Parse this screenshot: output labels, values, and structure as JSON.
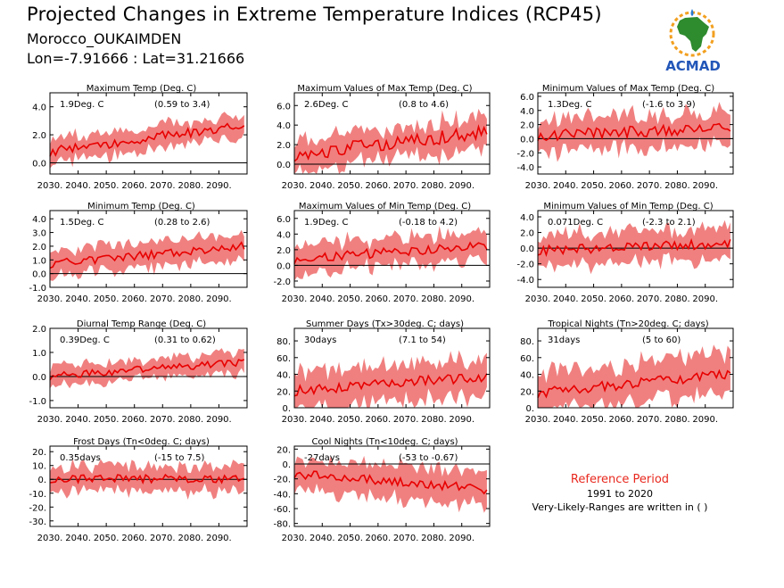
{
  "header": {
    "title": "Projected Changes in Extreme Temperature Indices (RCP45)",
    "location": "Morocco_OUKAIMDEN",
    "coords": "Lon=-7.91666 : Lat=31.21666"
  },
  "logo": {
    "text": "ACMAD",
    "icon": "africa-map-logo"
  },
  "reference": {
    "title": "Reference Period",
    "years": "1991 to 2020",
    "note": "Very-Likely-Ranges are written in ( )"
  },
  "colors": {
    "band": "#f08080",
    "line": "#e80000",
    "zero": "#000000",
    "ref_title": "#e8281e"
  },
  "chart_data": [
    {
      "id": "txx-mean",
      "type": "line",
      "title": "Maximum Temp (Deg. C)",
      "change": "1.9Deg. C",
      "range": "(0.59 to 3.4)",
      "x": [
        2030,
        2099
      ],
      "start": 0.8,
      "end": 2.7,
      "spread": 0.8,
      "noise": 0.35,
      "ylim": [
        -0.8,
        5.0
      ],
      "yticks": [
        "4.0",
        "2.0",
        "0.0"
      ],
      "ytick_values": [
        4,
        2,
        0
      ]
    },
    {
      "id": "txx",
      "type": "line",
      "title": "Maximum Values of Max Temp (Deg. C)",
      "change": "2.6Deg. C",
      "range": "(0.8 to 4.6)",
      "x": [
        2030,
        2099
      ],
      "start": 1.0,
      "end": 3.3,
      "spread": 1.6,
      "noise": 0.7,
      "ylim": [
        -1.0,
        7.3
      ],
      "yticks": [
        "6.0",
        "4.0",
        "2.0",
        "0.0"
      ],
      "ytick_values": [
        6,
        4,
        2,
        0
      ]
    },
    {
      "id": "txn",
      "type": "line",
      "title": "Minimum Values of Max Temp (Deg. C)",
      "change": "1.3Deg. C",
      "range": "(-1.6 to 3.9)",
      "x": [
        2030,
        2099
      ],
      "start": 0.5,
      "end": 1.5,
      "spread": 2.3,
      "noise": 0.8,
      "ylim": [
        -5.0,
        6.5
      ],
      "yticks": [
        "6.0",
        "4.0",
        "2.0",
        "0.0",
        "-2.0",
        "-4.0"
      ],
      "ytick_values": [
        6,
        4,
        2,
        0,
        -2,
        -4
      ]
    },
    {
      "id": "tn-mean",
      "type": "line",
      "title": "Minimum Temp (Deg. C)",
      "change": "1.5Deg. C",
      "range": "(0.28 to 2.6)",
      "x": [
        2030,
        2099
      ],
      "start": 0.7,
      "end": 2.0,
      "spread": 0.9,
      "noise": 0.3,
      "ylim": [
        -1.0,
        4.6
      ],
      "yticks": [
        "4.0",
        "3.0",
        "2.0",
        "1.0",
        "0.0",
        "-1.0"
      ],
      "ytick_values": [
        4,
        3,
        2,
        1,
        0,
        -1
      ]
    },
    {
      "id": "tnx",
      "type": "line",
      "title": "Maximum Values of Min Temp (Deg. C)",
      "change": "1.9Deg. C",
      "range": "(-0.18 to 4.2)",
      "x": [
        2030,
        2099
      ],
      "start": 0.8,
      "end": 2.6,
      "spread": 1.8,
      "noise": 0.6,
      "ylim": [
        -2.8,
        7.0
      ],
      "yticks": [
        "6.0",
        "4.0",
        "2.0",
        "0.0",
        "-2.0"
      ],
      "ytick_values": [
        6,
        4,
        2,
        0,
        -2
      ]
    },
    {
      "id": "tnn",
      "type": "line",
      "title": "Minimum Values of Min Temp (Deg. C)",
      "change": "0.071Deg. C",
      "range": "(-2.3 to 2.1)",
      "x": [
        2030,
        2099
      ],
      "start": -0.3,
      "end": 0.6,
      "spread": 2.0,
      "noise": 0.6,
      "ylim": [
        -5.0,
        4.8
      ],
      "yticks": [
        "4.0",
        "2.0",
        "0.0",
        "-2.0",
        "-4.0"
      ],
      "ytick_values": [
        4,
        2,
        0,
        -2,
        -4
      ]
    },
    {
      "id": "dtr",
      "type": "line",
      "title": "Diurnal Temp Range (Deg. C)",
      "change": "0.39Deg. C",
      "range": "(0.31 to 0.62)",
      "x": [
        2030,
        2099
      ],
      "start": 0.0,
      "end": 0.6,
      "spread": 0.4,
      "noise": 0.15,
      "ylim": [
        -1.3,
        2.0
      ],
      "yticks": [
        "2.0",
        "1.0",
        "0.0",
        "-1.0"
      ],
      "ytick_values": [
        2,
        1,
        0,
        -1
      ]
    },
    {
      "id": "su30",
      "type": "line",
      "title": "Summer Days (Tx>30deg. C; days)",
      "change": "30days",
      "range": "(7.1 to 54)",
      "x": [
        2030,
        2099
      ],
      "start": 20,
      "end": 38,
      "spread": 22,
      "noise": 6,
      "ylim": [
        0,
        95
      ],
      "yticks": [
        "80.",
        "60.",
        "40.",
        "20.",
        "0."
      ],
      "ytick_values": [
        80,
        60,
        40,
        20,
        0
      ]
    },
    {
      "id": "tr20",
      "type": "line",
      "title": "Tropical Nights (Tn>20deg. C; days)",
      "change": "31days",
      "range": "(5 to 60)",
      "x": [
        2030,
        2099
      ],
      "start": 18,
      "end": 40,
      "spread": 24,
      "noise": 6,
      "ylim": [
        0,
        95
      ],
      "yticks": [
        "80.",
        "60.",
        "40.",
        "20.",
        "0."
      ],
      "ytick_values": [
        80,
        60,
        40,
        20,
        0
      ]
    },
    {
      "id": "fd0",
      "type": "line",
      "title": "Frost Days (Tn<0deg. C; days)",
      "change": "0.35days",
      "range": "(-15 to 7.5)",
      "x": [
        2030,
        2099
      ],
      "start": 0.5,
      "end": 0.5,
      "spread": 9,
      "noise": 3,
      "ylim": [
        -34,
        24
      ],
      "yticks": [
        "20.",
        "10.",
        "0.",
        "-10.",
        "-20.",
        "-30."
      ],
      "ytick_values": [
        20,
        10,
        0,
        -10,
        -20,
        -30
      ]
    },
    {
      "id": "tn10",
      "type": "line",
      "title": "Cool Nights (Tn<10deg. C; days)",
      "change": "-27days",
      "range": "(-53 to -0.67)",
      "x": [
        2030,
        2099
      ],
      "start": -13,
      "end": -34,
      "spread": 22,
      "noise": 6,
      "ylim": [
        -84,
        24
      ],
      "yticks": [
        "20.",
        "0.",
        "-20.",
        "-40.",
        "-60.",
        "-80."
      ],
      "ytick_values": [
        20,
        0,
        -20,
        -40,
        -60,
        -80
      ]
    }
  ],
  "xticks": [
    "2030.",
    "2040.",
    "2050.",
    "2060.",
    "2070.",
    "2080.",
    "2090."
  ],
  "xtick_values": [
    2030,
    2040,
    2050,
    2060,
    2070,
    2080,
    2090
  ]
}
